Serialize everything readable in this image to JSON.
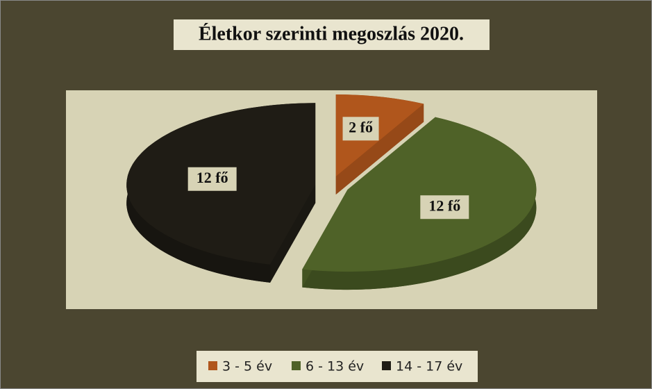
{
  "chart_data": {
    "type": "pie3d",
    "title": "Életkor szerinti megoszlás 2020.",
    "categories": [
      "3 - 5 év",
      "6 - 13 év",
      "14 - 17 év"
    ],
    "values": [
      2,
      12,
      12
    ],
    "value_labels": [
      "2 fő",
      "12 fő",
      "12 fő"
    ],
    "colors": [
      "#b0561c",
      "#4f6228",
      "#1f1c15"
    ]
  }
}
